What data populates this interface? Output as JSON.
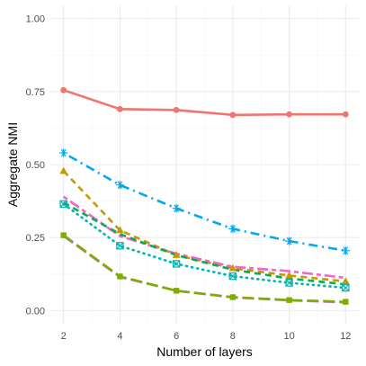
{
  "chart_data": {
    "type": "line",
    "title": "",
    "xlabel": "Number of layers",
    "ylabel": "Aggregate NMI",
    "x": [
      2,
      4,
      6,
      8,
      10,
      12
    ],
    "xticks": [
      "2",
      "4",
      "6",
      "8",
      "10",
      "12"
    ],
    "yticks": [
      "0.00",
      "0.25",
      "0.50",
      "0.75",
      "1.00"
    ],
    "xlim": [
      2,
      12
    ],
    "ylim": [
      0,
      1
    ],
    "grid": true,
    "legend": "none",
    "series": [
      {
        "color": "#F07470",
        "dash": "solid",
        "marker": "circle",
        "values": [
          0.755,
          0.69,
          0.687,
          0.67,
          0.672,
          0.672
        ]
      },
      {
        "color": "#00A9F0",
        "dash": "dotdash",
        "marker": "asterisk",
        "values": [
          0.54,
          0.43,
          0.35,
          0.28,
          0.238,
          0.205
        ]
      },
      {
        "color": "#C49A00",
        "dash": "dashed",
        "marker": "triangle",
        "values": [
          0.478,
          0.275,
          0.19,
          0.145,
          0.12,
          0.1
        ]
      },
      {
        "color": "#F564C8",
        "dash": "twodash",
        "marker": "none",
        "values": [
          0.39,
          0.255,
          0.195,
          0.15,
          0.135,
          0.112
        ]
      },
      {
        "color": "#00B4B4",
        "dash": "dotted",
        "marker": "boxcross",
        "values": [
          0.365,
          0.222,
          0.16,
          0.118,
          0.095,
          0.078
        ]
      },
      {
        "color": "#00B050",
        "dash": "dashed",
        "marker": "none",
        "values": [
          0.37,
          0.262,
          0.19,
          0.14,
          0.11,
          0.09
        ]
      },
      {
        "color": "#C77CFF",
        "dash": "longdash",
        "marker": "none",
        "values": [
          0.255,
          0.115,
          0.068,
          0.045,
          0.035,
          0.028
        ]
      },
      {
        "color": "#7CAE00",
        "dash": "longdash",
        "marker": "square",
        "values": [
          0.258,
          0.117,
          0.068,
          0.046,
          0.036,
          0.03
        ]
      }
    ]
  }
}
